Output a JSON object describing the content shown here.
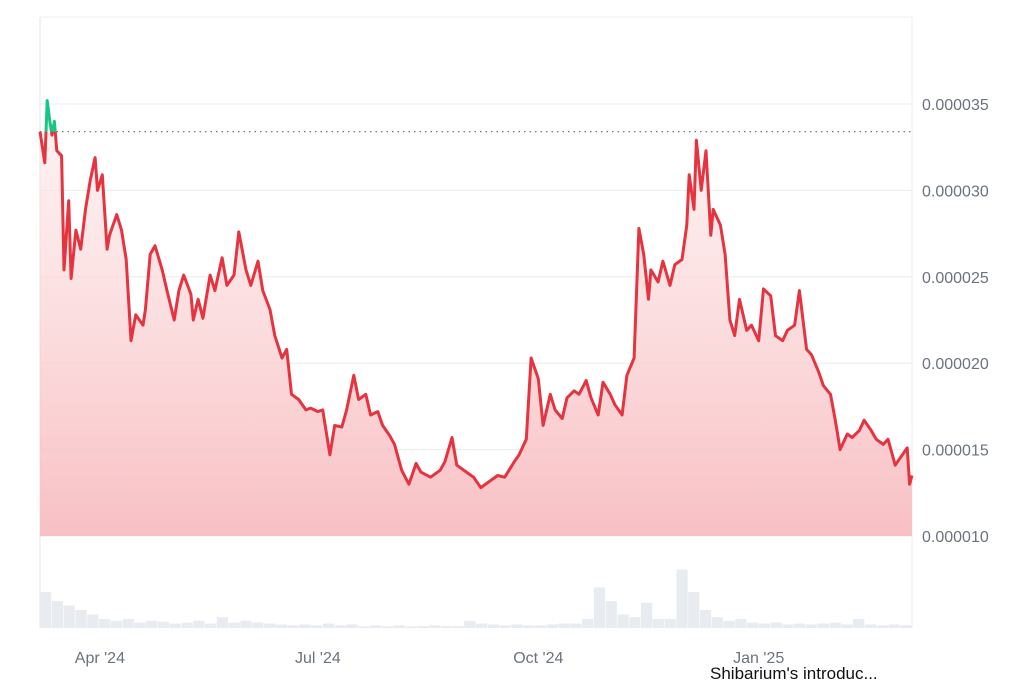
{
  "chart_data": {
    "type": "line",
    "title": "",
    "xlabel": "",
    "ylabel": "",
    "y_tick_labels": [
      "0.000035",
      "0.000030",
      "0.000025",
      "0.000020",
      "0.000015",
      "0.000010"
    ],
    "y_ticks": [
      3.5e-05,
      3e-05,
      2.5e-05,
      2e-05,
      1.5e-05,
      1e-05
    ],
    "ylim": [
      1e-05,
      4e-05
    ],
    "x_tick_labels": [
      "Apr '24",
      "Jul '24",
      "Oct '24",
      "Jan '25"
    ],
    "x_ticks": [
      "2024-04-01",
      "2024-07-01",
      "2024-10-01",
      "2025-01-01"
    ],
    "xlim": [
      "2024-03-07",
      "2025-03-06"
    ],
    "grid": "horizontal",
    "reference_line": {
      "value": 3.34e-05,
      "style": "dotted"
    },
    "colors": {
      "above_reference": "#16c784",
      "below_reference": "#e5343f",
      "fill": "#f8c9cc",
      "grid": "#ececec",
      "volume": "#e8ecf0"
    },
    "annotation": "Shibarium's introduc...",
    "series": [
      {
        "points": [
          [
            "2024-03-07",
            3.34e-05
          ],
          [
            "2024-03-09",
            3.16e-05
          ],
          [
            "2024-03-10",
            3.52e-05
          ],
          [
            "2024-03-11",
            3.41e-05
          ],
          [
            "2024-03-12",
            3.32e-05
          ],
          [
            "2024-03-13",
            3.4e-05
          ],
          [
            "2024-03-14",
            3.23e-05
          ],
          [
            "2024-03-16",
            3.2e-05
          ],
          [
            "2024-03-17",
            2.54e-05
          ],
          [
            "2024-03-19",
            2.94e-05
          ],
          [
            "2024-03-20",
            2.49e-05
          ],
          [
            "2024-03-22",
            2.77e-05
          ],
          [
            "2024-03-24",
            2.66e-05
          ],
          [
            "2024-03-26",
            2.89e-05
          ],
          [
            "2024-03-28",
            3.06e-05
          ],
          [
            "2024-03-30",
            3.19e-05
          ],
          [
            "2024-03-31",
            3e-05
          ],
          [
            "2024-04-02",
            3.09e-05
          ],
          [
            "2024-04-04",
            2.66e-05
          ],
          [
            "2024-04-05",
            2.74e-05
          ],
          [
            "2024-04-08",
            2.86e-05
          ],
          [
            "2024-04-10",
            2.77e-05
          ],
          [
            "2024-04-12",
            2.6e-05
          ],
          [
            "2024-04-14",
            2.13e-05
          ],
          [
            "2024-04-16",
            2.28e-05
          ],
          [
            "2024-04-19",
            2.22e-05
          ],
          [
            "2024-04-20",
            2.31e-05
          ],
          [
            "2024-04-22",
            2.63e-05
          ],
          [
            "2024-04-24",
            2.68e-05
          ],
          [
            "2024-04-27",
            2.54e-05
          ],
          [
            "2024-04-29",
            2.42e-05
          ],
          [
            "2024-05-02",
            2.25e-05
          ],
          [
            "2024-05-04",
            2.42e-05
          ],
          [
            "2024-05-06",
            2.51e-05
          ],
          [
            "2024-05-09",
            2.4e-05
          ],
          [
            "2024-05-10",
            2.25e-05
          ],
          [
            "2024-05-12",
            2.37e-05
          ],
          [
            "2024-05-14",
            2.26e-05
          ],
          [
            "2024-05-17",
            2.51e-05
          ],
          [
            "2024-05-19",
            2.42e-05
          ],
          [
            "2024-05-22",
            2.61e-05
          ],
          [
            "2024-05-24",
            2.45e-05
          ],
          [
            "2024-05-27",
            2.51e-05
          ],
          [
            "2024-05-29",
            2.76e-05
          ],
          [
            "2024-06-01",
            2.54e-05
          ],
          [
            "2024-06-03",
            2.45e-05
          ],
          [
            "2024-06-06",
            2.59e-05
          ],
          [
            "2024-06-08",
            2.42e-05
          ],
          [
            "2024-06-11",
            2.31e-05
          ],
          [
            "2024-06-13",
            2.16e-05
          ],
          [
            "2024-06-16",
            2.03e-05
          ],
          [
            "2024-06-18",
            2.08e-05
          ],
          [
            "2024-06-20",
            1.82e-05
          ],
          [
            "2024-06-23",
            1.79e-05
          ],
          [
            "2024-06-26",
            1.73e-05
          ],
          [
            "2024-06-28",
            1.74e-05
          ],
          [
            "2024-07-01",
            1.72e-05
          ],
          [
            "2024-07-03",
            1.73e-05
          ],
          [
            "2024-07-06",
            1.47e-05
          ],
          [
            "2024-07-08",
            1.64e-05
          ],
          [
            "2024-07-11",
            1.63e-05
          ],
          [
            "2024-07-13",
            1.73e-05
          ],
          [
            "2024-07-16",
            1.93e-05
          ],
          [
            "2024-07-18",
            1.79e-05
          ],
          [
            "2024-07-21",
            1.82e-05
          ],
          [
            "2024-07-23",
            1.7e-05
          ],
          [
            "2024-07-26",
            1.72e-05
          ],
          [
            "2024-07-28",
            1.64e-05
          ],
          [
            "2024-07-31",
            1.58e-05
          ],
          [
            "2024-08-02",
            1.53e-05
          ],
          [
            "2024-08-05",
            1.38e-05
          ],
          [
            "2024-08-08",
            1.3e-05
          ],
          [
            "2024-08-11",
            1.42e-05
          ],
          [
            "2024-08-13",
            1.37e-05
          ],
          [
            "2024-08-17",
            1.34e-05
          ],
          [
            "2024-08-21",
            1.38e-05
          ],
          [
            "2024-08-23",
            1.43e-05
          ],
          [
            "2024-08-26",
            1.57e-05
          ],
          [
            "2024-08-28",
            1.41e-05
          ],
          [
            "2024-09-01",
            1.37e-05
          ],
          [
            "2024-09-04",
            1.34e-05
          ],
          [
            "2024-09-07",
            1.28e-05
          ],
          [
            "2024-09-11",
            1.32e-05
          ],
          [
            "2024-09-14",
            1.35e-05
          ],
          [
            "2024-09-17",
            1.34e-05
          ],
          [
            "2024-09-21",
            1.43e-05
          ],
          [
            "2024-09-23",
            1.47e-05
          ],
          [
            "2024-09-26",
            1.56e-05
          ],
          [
            "2024-09-28",
            2.03e-05
          ],
          [
            "2024-10-01",
            1.91e-05
          ],
          [
            "2024-10-03",
            1.64e-05
          ],
          [
            "2024-10-06",
            1.82e-05
          ],
          [
            "2024-10-08",
            1.73e-05
          ],
          [
            "2024-10-11",
            1.68e-05
          ],
          [
            "2024-10-13",
            1.8e-05
          ],
          [
            "2024-10-16",
            1.84e-05
          ],
          [
            "2024-10-18",
            1.82e-05
          ],
          [
            "2024-10-21",
            1.9e-05
          ],
          [
            "2024-10-23",
            1.8e-05
          ],
          [
            "2024-10-26",
            1.7e-05
          ],
          [
            "2024-10-28",
            1.89e-05
          ],
          [
            "2024-10-31",
            1.82e-05
          ],
          [
            "2024-11-02",
            1.76e-05
          ],
          [
            "2024-11-05",
            1.7e-05
          ],
          [
            "2024-11-07",
            1.93e-05
          ],
          [
            "2024-11-10",
            2.03e-05
          ],
          [
            "2024-11-12",
            2.78e-05
          ],
          [
            "2024-11-14",
            2.63e-05
          ],
          [
            "2024-11-16",
            2.37e-05
          ],
          [
            "2024-11-17",
            2.54e-05
          ],
          [
            "2024-11-20",
            2.47e-05
          ],
          [
            "2024-11-22",
            2.59e-05
          ],
          [
            "2024-11-25",
            2.45e-05
          ],
          [
            "2024-11-27",
            2.57e-05
          ],
          [
            "2024-11-30",
            2.6e-05
          ],
          [
            "2024-12-02",
            2.8e-05
          ],
          [
            "2024-12-03",
            3.09e-05
          ],
          [
            "2024-12-05",
            2.89e-05
          ],
          [
            "2024-12-06",
            3.29e-05
          ],
          [
            "2024-12-08",
            3e-05
          ],
          [
            "2024-12-10",
            3.23e-05
          ],
          [
            "2024-12-12",
            2.74e-05
          ],
          [
            "2024-12-13",
            2.89e-05
          ],
          [
            "2024-12-16",
            2.8e-05
          ],
          [
            "2024-12-18",
            2.63e-05
          ],
          [
            "2024-12-20",
            2.25e-05
          ],
          [
            "2024-12-22",
            2.16e-05
          ],
          [
            "2024-12-24",
            2.37e-05
          ],
          [
            "2024-12-27",
            2.19e-05
          ],
          [
            "2024-12-29",
            2.22e-05
          ],
          [
            "2025-01-01",
            2.13e-05
          ],
          [
            "2025-01-03",
            2.43e-05
          ],
          [
            "2025-01-06",
            2.39e-05
          ],
          [
            "2025-01-08",
            2.16e-05
          ],
          [
            "2025-01-11",
            2.13e-05
          ],
          [
            "2025-01-13",
            2.19e-05
          ],
          [
            "2025-01-16",
            2.22e-05
          ],
          [
            "2025-01-18",
            2.42e-05
          ],
          [
            "2025-01-21",
            2.08e-05
          ],
          [
            "2025-01-23",
            2.05e-05
          ],
          [
            "2025-01-26",
            1.95e-05
          ],
          [
            "2025-01-28",
            1.87e-05
          ],
          [
            "2025-01-31",
            1.82e-05
          ],
          [
            "2025-02-02",
            1.67e-05
          ],
          [
            "2025-02-04",
            1.5e-05
          ],
          [
            "2025-02-07",
            1.59e-05
          ],
          [
            "2025-02-09",
            1.57e-05
          ],
          [
            "2025-02-12",
            1.61e-05
          ],
          [
            "2025-02-14",
            1.67e-05
          ],
          [
            "2025-02-17",
            1.61e-05
          ],
          [
            "2025-02-19",
            1.56e-05
          ],
          [
            "2025-02-22",
            1.53e-05
          ],
          [
            "2025-02-24",
            1.56e-05
          ],
          [
            "2025-02-27",
            1.41e-05
          ],
          [
            "2025-03-01",
            1.45e-05
          ],
          [
            "2025-03-04",
            1.51e-05
          ],
          [
            "2025-03-05",
            1.3e-05
          ],
          [
            "2025-03-06",
            1.35e-05
          ]
        ]
      }
    ],
    "volume_relative": [
      0.4,
      0.3,
      0.25,
      0.2,
      0.15,
      0.1,
      0.08,
      0.1,
      0.06,
      0.08,
      0.07,
      0.05,
      0.06,
      0.08,
      0.05,
      0.12,
      0.06,
      0.08,
      0.06,
      0.05,
      0.04,
      0.03,
      0.04,
      0.03,
      0.05,
      0.03,
      0.04,
      0.02,
      0.03,
      0.02,
      0.03,
      0.02,
      0.02,
      0.03,
      0.02,
      0.02,
      0.08,
      0.05,
      0.04,
      0.03,
      0.04,
      0.03,
      0.03,
      0.04,
      0.05,
      0.05,
      0.1,
      0.45,
      0.3,
      0.15,
      0.12,
      0.28,
      0.1,
      0.1,
      0.65,
      0.4,
      0.2,
      0.12,
      0.08,
      0.1,
      0.06,
      0.05,
      0.06,
      0.04,
      0.05,
      0.04,
      0.05,
      0.06,
      0.04,
      0.1,
      0.04,
      0.03,
      0.04,
      0.03
    ]
  }
}
